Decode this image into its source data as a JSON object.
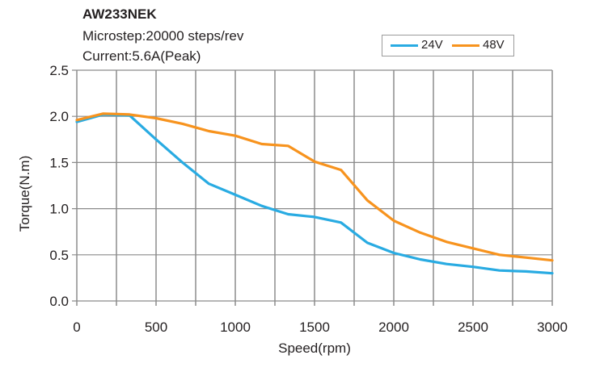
{
  "chart_data": {
    "type": "line",
    "title": "AW233NEK",
    "subtitle": [
      "Microstep:20000 steps/rev",
      "Current:5.6A(Peak)"
    ],
    "xlabel": "Speed(rpm)",
    "ylabel": "Torque(N.m)",
    "xlim": [
      0,
      3000
    ],
    "ylim": [
      0,
      2.5
    ],
    "xticks": [
      0,
      500,
      1000,
      1500,
      2000,
      2500,
      3000
    ],
    "xtick_labels": [
      "0",
      "500",
      "1000",
      "1500",
      "2000",
      "2500",
      "3000"
    ],
    "yticks": [
      0,
      0.5,
      1.0,
      1.5,
      2.0,
      2.5
    ],
    "ytick_labels": [
      "0.0",
      "0.5",
      "1.0",
      "1.5",
      "2.0",
      "2.5"
    ],
    "grid": true,
    "x_minor_grid_step": 250,
    "legend_position": "top-right",
    "x": [
      0,
      167,
      333,
      500,
      667,
      833,
      1000,
      1167,
      1333,
      1500,
      1667,
      1833,
      2000,
      2167,
      2333,
      2500,
      2667,
      2833,
      3000
    ],
    "series": [
      {
        "name": "24V",
        "color": "#29abe2",
        "values": [
          1.94,
          2.02,
          2.01,
          1.75,
          1.5,
          1.27,
          1.15,
          1.03,
          0.94,
          0.91,
          0.85,
          0.63,
          0.52,
          0.45,
          0.4,
          0.37,
          0.33,
          0.32,
          0.3
        ]
      },
      {
        "name": "48V",
        "color": "#f7931e",
        "values": [
          1.96,
          2.03,
          2.02,
          1.98,
          1.92,
          1.84,
          1.79,
          1.7,
          1.68,
          1.51,
          1.42,
          1.09,
          0.87,
          0.74,
          0.64,
          0.57,
          0.5,
          0.47,
          0.44
        ]
      }
    ]
  }
}
